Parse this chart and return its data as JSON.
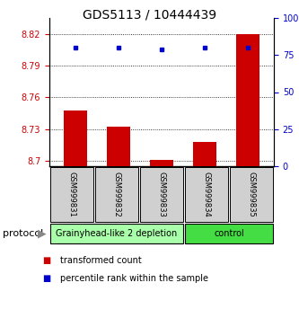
{
  "title": "GDS5113 / 10444439",
  "samples": [
    "GSM999831",
    "GSM999832",
    "GSM999833",
    "GSM999834",
    "GSM999835"
  ],
  "bar_values": [
    8.748,
    8.732,
    8.701,
    8.718,
    8.82
  ],
  "dot_values": [
    80,
    80,
    79,
    80,
    80
  ],
  "bar_color": "#cc0000",
  "dot_color": "#0000cc",
  "ylim_left": [
    8.695,
    8.835
  ],
  "ylim_right": [
    0,
    100
  ],
  "left_ticks": [
    8.7,
    8.73,
    8.76,
    8.79,
    8.82
  ],
  "right_ticks": [
    0,
    25,
    50,
    75,
    100
  ],
  "right_tick_labels": [
    "0",
    "25",
    "50",
    "75",
    "100%"
  ],
  "groups": [
    {
      "label": "Grainyhead-like 2 depletion",
      "indices": [
        0,
        1,
        2
      ],
      "color": "#aaffaa"
    },
    {
      "label": "control",
      "indices": [
        3,
        4
      ],
      "color": "#44dd44"
    }
  ],
  "protocol_label": "protocol",
  "legend_bar_label": "transformed count",
  "legend_dot_label": "percentile rank within the sample",
  "bar_width": 0.55
}
